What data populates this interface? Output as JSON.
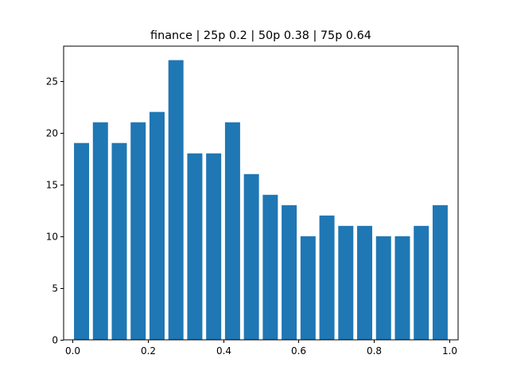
{
  "chart_data": {
    "type": "bar",
    "title": "finance | 25p 0.2 | 50p 0.38 | 75p 0.64",
    "xlabel": "",
    "ylabel": "",
    "bar_width": 0.04,
    "x": [
      0.025,
      0.075,
      0.125,
      0.175,
      0.225,
      0.275,
      0.325,
      0.375,
      0.425,
      0.475,
      0.525,
      0.575,
      0.625,
      0.675,
      0.725,
      0.775,
      0.825,
      0.875,
      0.925,
      0.975
    ],
    "values": [
      19,
      21,
      19,
      21,
      22,
      27,
      18,
      18,
      21,
      16,
      14,
      13,
      10,
      12,
      11,
      11,
      10,
      10,
      11,
      13
    ],
    "xlim": [
      -0.0225,
      1.0225
    ],
    "ylim": [
      0,
      28.35
    ],
    "xticks": [
      0.0,
      0.2,
      0.4,
      0.6,
      0.8,
      1.0
    ],
    "xtick_labels": [
      "0.0",
      "0.2",
      "0.4",
      "0.6",
      "0.8",
      "1.0"
    ],
    "yticks": [
      0,
      5,
      10,
      15,
      20,
      25
    ],
    "ytick_labels": [
      "0",
      "5",
      "10",
      "15",
      "20",
      "25"
    ],
    "bar_color": "#1f77b4",
    "grid": false,
    "legend": "none"
  }
}
